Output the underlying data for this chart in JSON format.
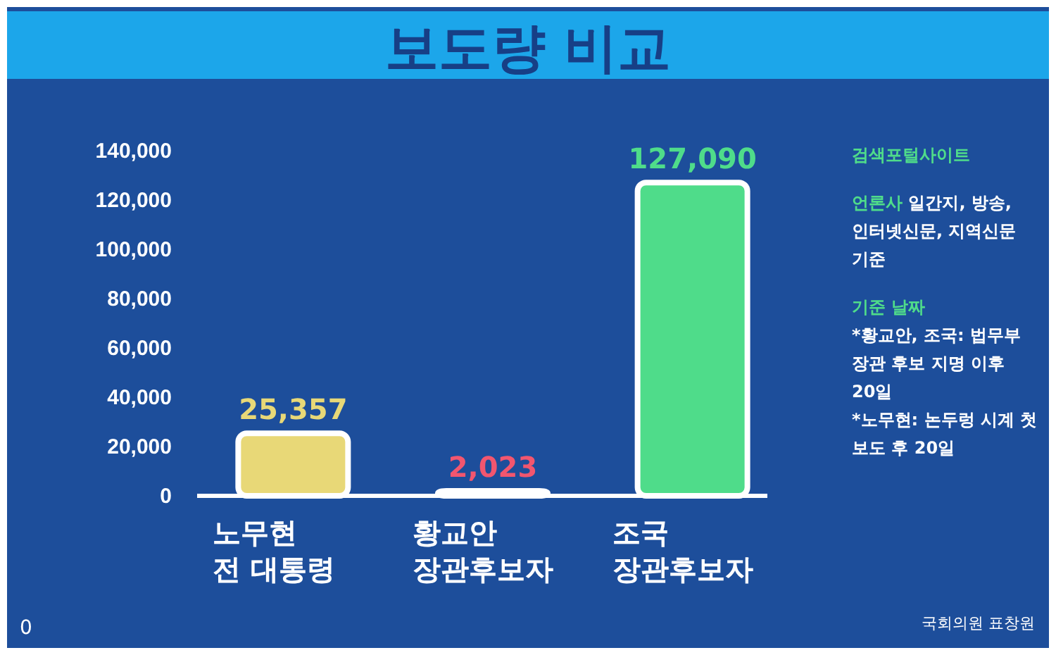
{
  "chart_data": {
    "type": "bar",
    "title": "보도량 비교",
    "categories": [
      "노무현 전 대통령",
      "황교안 장관후보자",
      "조국 장관후보자"
    ],
    "values": [
      25357,
      2023,
      127090
    ],
    "colors": [
      "#e8d877",
      "#f2566f",
      "#4fdc8a"
    ],
    "ylim": [
      0,
      140000
    ],
    "yticks": [
      {
        "value": 0,
        "label": "0"
      },
      {
        "value": 20000,
        "label": "20,000"
      },
      {
        "value": 40000,
        "label": "40,000"
      },
      {
        "value": 60000,
        "label": "60,000"
      },
      {
        "value": 80000,
        "label": "80,000"
      },
      {
        "value": 100000,
        "label": "100,000"
      },
      {
        "value": 120000,
        "label": "120,000"
      },
      {
        "value": 140000,
        "label": "140,000"
      }
    ],
    "grid": false,
    "value_labels": [
      "25,357",
      "2,023",
      "127,090"
    ],
    "annotations": [
      "검색포털사이트",
      "언론사",
      "일간지, 방송, 인터넷신문, 지역신문 기준",
      "기준 날짜",
      "*황교안, 조국: 법무부 장관 후보 지명 이후 20일",
      "*노무현: 논두렁 시계 첫 보도 후 20일",
      "0",
      "국회의원 표창원"
    ]
  }
}
